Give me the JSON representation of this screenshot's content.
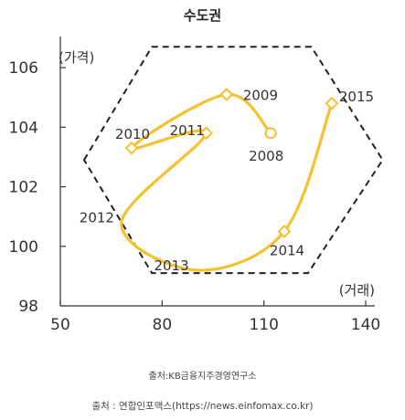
{
  "chart_data": {
    "type": "line",
    "title": "수도권",
    "ylabel": "(가격)",
    "xlabel": "(거래)",
    "xlim": [
      50,
      140
    ],
    "ylim": [
      98,
      106.8
    ],
    "x_ticks": [
      50,
      80,
      110,
      140
    ],
    "y_ticks": [
      98,
      100,
      102,
      104,
      106
    ],
    "series": [
      {
        "color": "#f5c12e",
        "points": [
          {
            "label": "2008",
            "x": 112,
            "y": 103.8,
            "marker": "circle"
          },
          {
            "label": "2009",
            "x": 99,
            "y": 105.1,
            "marker": "diamond"
          },
          {
            "label": "2010",
            "x": 71,
            "y": 103.3,
            "marker": "diamond"
          },
          {
            "label": "2011",
            "x": 93,
            "y": 103.8,
            "marker": "diamond"
          },
          {
            "label": "2012",
            "x": 68,
            "y": 100.8,
            "marker": "none"
          },
          {
            "label": "2013",
            "x": 90,
            "y": 99.2,
            "marker": "none"
          },
          {
            "label": "2014",
            "x": 116,
            "y": 100.5,
            "marker": "diamond"
          },
          {
            "label": "2015",
            "x": 130,
            "y": 104.8,
            "marker": "diamond"
          }
        ]
      }
    ],
    "hexagon": {
      "style": "dashed",
      "vertices": [
        [
          57,
          102.9
        ],
        [
          77,
          106.7
        ],
        [
          124,
          106.7
        ],
        [
          145,
          102.9
        ],
        [
          123,
          99.1
        ],
        [
          77,
          99.1
        ]
      ]
    }
  },
  "sources": {
    "data_source": "출처:KB금융지주경영연구소",
    "image_source": "출처 : 연합인포맥스(https://news.einfomax.co.kr)"
  }
}
